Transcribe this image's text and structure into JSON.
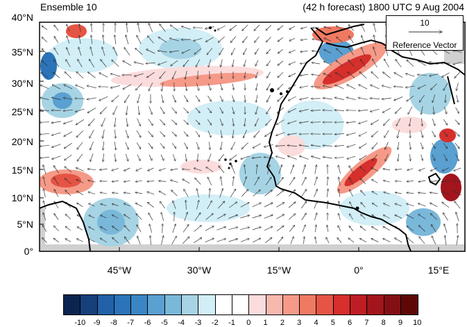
{
  "header": {
    "title_left": "Ensemble 10",
    "title_right": "(42 h forecast) 1800 UTC 9 Aug 2004"
  },
  "reference_vector": {
    "value": "10",
    "label": "Reference Vector"
  },
  "axes": {
    "lat_labels": [
      "40°N",
      "35°N",
      "30°N",
      "25°N",
      "20°N",
      "15°N",
      "10°N",
      "5°N",
      "0°"
    ],
    "lon_labels": [
      "45°W",
      "30°W",
      "15°W",
      "0°",
      "15°E"
    ]
  },
  "colorbar": {
    "ticks": [
      "-10",
      "-9",
      "-8",
      "-7",
      "-6",
      "-5",
      "-4",
      "-3",
      "-2",
      "-1",
      "0",
      "1",
      "2",
      "3",
      "4",
      "5",
      "6",
      "7",
      "8",
      "9",
      "10"
    ],
    "colors": [
      "#0b2550",
      "#173f7a",
      "#2161a8",
      "#2b74b9",
      "#3a86c5",
      "#5aa0d1",
      "#7ab8da",
      "#a6d4e4",
      "#d2eef6",
      "#ffffff",
      "#ffffff",
      "#fbdcdc",
      "#f7b8ae",
      "#f59a88",
      "#ef7a62",
      "#e55444",
      "#d62f2c",
      "#be1e23",
      "#a3151c",
      "#841016",
      "#5e0707"
    ]
  },
  "colors": {
    "land_edge": "#000000",
    "missing": "#d0d0d0"
  }
}
